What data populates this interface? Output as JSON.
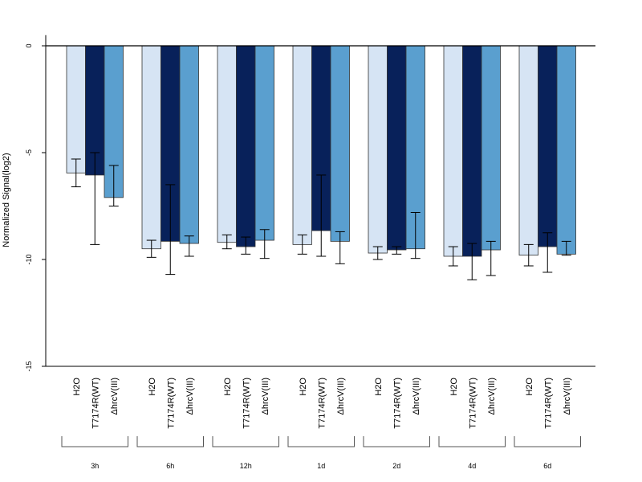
{
  "chart_data": {
    "type": "bar",
    "title": "",
    "xlabel": "",
    "ylabel": "Normalized Signal(log2)",
    "ylim": [
      -15,
      0.5
    ],
    "yticks": [
      0,
      -5,
      -10,
      -15
    ],
    "groups": [
      "3h",
      "6h",
      "12h",
      "1d",
      "2d",
      "4d",
      "6d"
    ],
    "conditions": [
      "H2O",
      "T7174R(WT)",
      "ΔhrcV(III)"
    ],
    "colors": [
      "#d6e4f4",
      "#08215a",
      "#5a9fcf"
    ],
    "series": [
      {
        "name": "H2O",
        "values": [
          -5.95,
          -9.5,
          -9.2,
          -9.3,
          -9.7,
          -9.85,
          -9.8
        ],
        "err_low": [
          -6.6,
          -9.9,
          -9.5,
          -9.75,
          -10.0,
          -10.3,
          -10.3
        ],
        "err_high": [
          -5.3,
          -9.1,
          -8.85,
          -8.85,
          -9.4,
          -9.4,
          -9.3
        ]
      },
      {
        "name": "T7174R(WT)",
        "values": [
          -6.05,
          -9.15,
          -9.4,
          -8.65,
          -9.55,
          -9.85,
          -9.4
        ],
        "err_low": [
          -9.3,
          -10.7,
          -9.75,
          -9.85,
          -9.75,
          -10.95,
          -10.6
        ],
        "err_high": [
          -5.0,
          -6.5,
          -8.95,
          -6.05,
          -9.4,
          -9.25,
          -8.75
        ]
      },
      {
        "name": "ΔhrcV(III)",
        "values": [
          -7.1,
          -9.25,
          -9.1,
          -9.15,
          -9.5,
          -9.55,
          -9.75
        ],
        "err_low": [
          -7.5,
          -9.85,
          -9.95,
          -10.2,
          -9.95,
          -10.75,
          -9.8
        ],
        "err_high": [
          -5.6,
          -8.9,
          -8.6,
          -8.7,
          -7.8,
          -9.15,
          -9.15
        ]
      }
    ]
  }
}
